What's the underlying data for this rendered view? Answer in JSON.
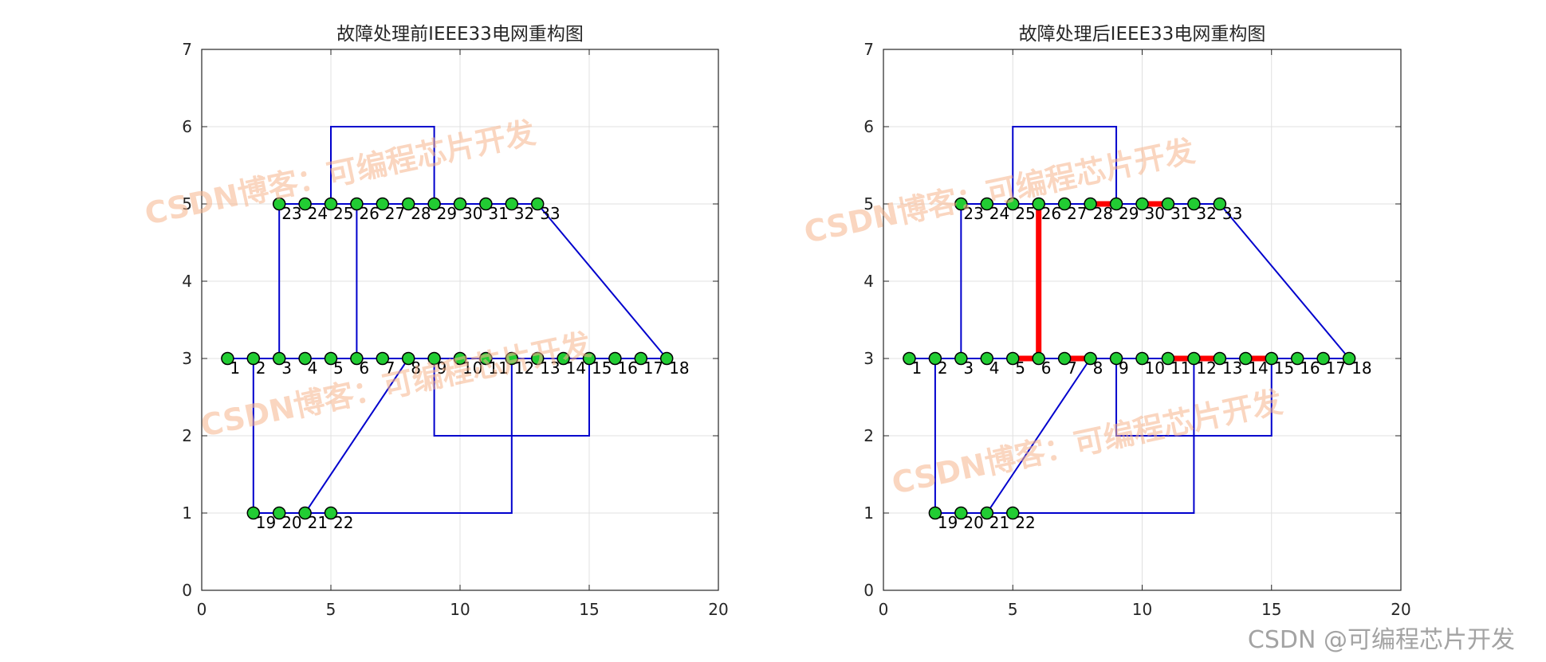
{
  "watermark": {
    "text": "CSDN博客：可编程芯片开发",
    "footer": "CSDN @可编程芯片开发",
    "color": "#f5b48c"
  },
  "colors": {
    "line": "#0000cd",
    "fault": "#ff0000",
    "node_fill": "#22cc33",
    "node_edge": "#000000",
    "grid": "#e0e0e0",
    "axis": "#262626"
  },
  "chart_data": [
    {
      "type": "network",
      "title": "故障处理前IEEE33电网重构图",
      "xlim": [
        0,
        20
      ],
      "ylim": [
        0,
        7
      ],
      "xticks": [
        0,
        5,
        10,
        15,
        20
      ],
      "yticks": [
        0,
        1,
        2,
        3,
        4,
        5,
        6,
        7
      ],
      "grid": true,
      "nodes": [
        {
          "id": "1",
          "x": 1,
          "y": 3
        },
        {
          "id": "2",
          "x": 2,
          "y": 3
        },
        {
          "id": "3",
          "x": 3,
          "y": 3
        },
        {
          "id": "4",
          "x": 4,
          "y": 3
        },
        {
          "id": "5",
          "x": 5,
          "y": 3
        },
        {
          "id": "6",
          "x": 6,
          "y": 3
        },
        {
          "id": "7",
          "x": 7,
          "y": 3
        },
        {
          "id": "8",
          "x": 8,
          "y": 3
        },
        {
          "id": "9",
          "x": 9,
          "y": 3
        },
        {
          "id": "10",
          "x": 10,
          "y": 3
        },
        {
          "id": "11",
          "x": 11,
          "y": 3
        },
        {
          "id": "12",
          "x": 12,
          "y": 3
        },
        {
          "id": "13",
          "x": 13,
          "y": 3
        },
        {
          "id": "14",
          "x": 14,
          "y": 3
        },
        {
          "id": "15",
          "x": 15,
          "y": 3
        },
        {
          "id": "16",
          "x": 16,
          "y": 3
        },
        {
          "id": "17",
          "x": 17,
          "y": 3
        },
        {
          "id": "18",
          "x": 18,
          "y": 3
        },
        {
          "id": "19",
          "x": 2,
          "y": 1
        },
        {
          "id": "20",
          "x": 3,
          "y": 1
        },
        {
          "id": "21",
          "x": 4,
          "y": 1
        },
        {
          "id": "22",
          "x": 5,
          "y": 1
        },
        {
          "id": "23",
          "x": 3,
          "y": 5
        },
        {
          "id": "24",
          "x": 4,
          "y": 5
        },
        {
          "id": "25",
          "x": 5,
          "y": 5
        },
        {
          "id": "26",
          "x": 6,
          "y": 5
        },
        {
          "id": "27",
          "x": 7,
          "y": 5
        },
        {
          "id": "28",
          "x": 8,
          "y": 5
        },
        {
          "id": "29",
          "x": 9,
          "y": 5
        },
        {
          "id": "30",
          "x": 10,
          "y": 5
        },
        {
          "id": "31",
          "x": 11,
          "y": 5
        },
        {
          "id": "32",
          "x": 12,
          "y": 5
        },
        {
          "id": "33",
          "x": 13,
          "y": 5
        }
      ],
      "lines": [
        [
          [
            1,
            3
          ],
          [
            18,
            3
          ]
        ],
        [
          [
            3,
            5
          ],
          [
            13,
            5
          ]
        ],
        [
          [
            2,
            1
          ],
          [
            5,
            1
          ]
        ],
        [
          [
            2,
            3
          ],
          [
            2,
            1
          ]
        ],
        [
          [
            3,
            3
          ],
          [
            3,
            5
          ]
        ],
        [
          [
            6,
            3
          ],
          [
            6,
            5
          ]
        ],
        [
          [
            5,
            5
          ],
          [
            5,
            6
          ],
          [
            9,
            6
          ],
          [
            9,
            5
          ]
        ],
        [
          [
            13,
            5
          ],
          [
            18,
            3
          ]
        ],
        [
          [
            4,
            1
          ],
          [
            8,
            3
          ]
        ],
        [
          [
            5,
            1
          ],
          [
            12,
            1
          ],
          [
            12,
            3
          ]
        ],
        [
          [
            9,
            3
          ],
          [
            9,
            2
          ],
          [
            15,
            2
          ],
          [
            15,
            3
          ]
        ]
      ],
      "fault_lines": []
    },
    {
      "type": "network",
      "title": "故障处理后IEEE33电网重构图",
      "xlim": [
        0,
        20
      ],
      "ylim": [
        0,
        7
      ],
      "xticks": [
        0,
        5,
        10,
        15,
        20
      ],
      "yticks": [
        0,
        1,
        2,
        3,
        4,
        5,
        6,
        7
      ],
      "grid": true,
      "nodes": [
        {
          "id": "1",
          "x": 1,
          "y": 3
        },
        {
          "id": "2",
          "x": 2,
          "y": 3
        },
        {
          "id": "3",
          "x": 3,
          "y": 3
        },
        {
          "id": "4",
          "x": 4,
          "y": 3
        },
        {
          "id": "5",
          "x": 5,
          "y": 3
        },
        {
          "id": "6",
          "x": 6,
          "y": 3
        },
        {
          "id": "7",
          "x": 7,
          "y": 3
        },
        {
          "id": "8",
          "x": 8,
          "y": 3
        },
        {
          "id": "9",
          "x": 9,
          "y": 3
        },
        {
          "id": "10",
          "x": 10,
          "y": 3
        },
        {
          "id": "11",
          "x": 11,
          "y": 3
        },
        {
          "id": "12",
          "x": 12,
          "y": 3
        },
        {
          "id": "13",
          "x": 13,
          "y": 3
        },
        {
          "id": "14",
          "x": 14,
          "y": 3
        },
        {
          "id": "15",
          "x": 15,
          "y": 3
        },
        {
          "id": "16",
          "x": 16,
          "y": 3
        },
        {
          "id": "17",
          "x": 17,
          "y": 3
        },
        {
          "id": "18",
          "x": 18,
          "y": 3
        },
        {
          "id": "19",
          "x": 2,
          "y": 1
        },
        {
          "id": "20",
          "x": 3,
          "y": 1
        },
        {
          "id": "21",
          "x": 4,
          "y": 1
        },
        {
          "id": "22",
          "x": 5,
          "y": 1
        },
        {
          "id": "23",
          "x": 3,
          "y": 5
        },
        {
          "id": "24",
          "x": 4,
          "y": 5
        },
        {
          "id": "25",
          "x": 5,
          "y": 5
        },
        {
          "id": "26",
          "x": 6,
          "y": 5
        },
        {
          "id": "27",
          "x": 7,
          "y": 5
        },
        {
          "id": "28",
          "x": 8,
          "y": 5
        },
        {
          "id": "29",
          "x": 9,
          "y": 5
        },
        {
          "id": "30",
          "x": 10,
          "y": 5
        },
        {
          "id": "31",
          "x": 11,
          "y": 5
        },
        {
          "id": "32",
          "x": 12,
          "y": 5
        },
        {
          "id": "33",
          "x": 13,
          "y": 5
        }
      ],
      "lines": [
        [
          [
            1,
            3
          ],
          [
            18,
            3
          ]
        ],
        [
          [
            3,
            5
          ],
          [
            13,
            5
          ]
        ],
        [
          [
            2,
            1
          ],
          [
            5,
            1
          ]
        ],
        [
          [
            2,
            3
          ],
          [
            2,
            1
          ]
        ],
        [
          [
            3,
            3
          ],
          [
            3,
            5
          ]
        ],
        [
          [
            5,
            5
          ],
          [
            5,
            6
          ],
          [
            9,
            6
          ],
          [
            9,
            5
          ]
        ],
        [
          [
            13,
            5
          ],
          [
            18,
            3
          ]
        ],
        [
          [
            4,
            1
          ],
          [
            8,
            3
          ]
        ],
        [
          [
            5,
            1
          ],
          [
            12,
            1
          ],
          [
            12,
            3
          ]
        ],
        [
          [
            9,
            3
          ],
          [
            9,
            2
          ],
          [
            15,
            2
          ],
          [
            15,
            3
          ]
        ]
      ],
      "fault_lines": [
        [
          [
            5,
            3
          ],
          [
            6,
            3
          ],
          [
            6,
            5
          ]
        ],
        [
          [
            7,
            3
          ],
          [
            8,
            3
          ]
        ],
        [
          [
            8,
            5
          ],
          [
            9,
            5
          ]
        ],
        [
          [
            10,
            5
          ],
          [
            11,
            5
          ]
        ],
        [
          [
            11,
            3
          ],
          [
            13,
            3
          ]
        ],
        [
          [
            14,
            3
          ],
          [
            15,
            3
          ]
        ]
      ]
    }
  ]
}
